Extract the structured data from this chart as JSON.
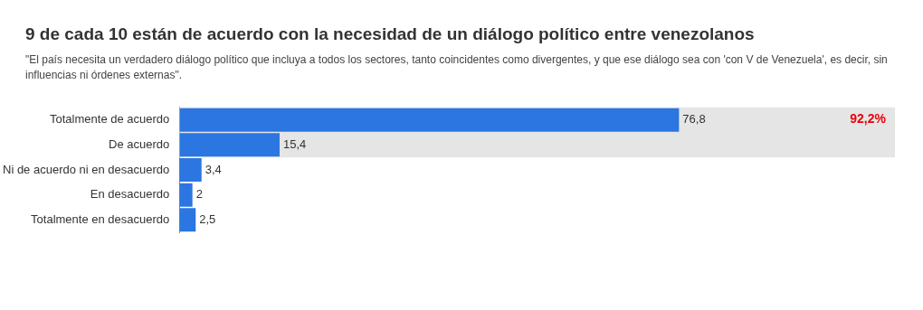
{
  "chart_data": {
    "type": "bar",
    "orientation": "horizontal",
    "title": "9 de cada 10 están de acuerdo con la necesidad de un diálogo político entre venezolanos",
    "subtitle": "\"El país necesita un verdadero diálogo político que incluya a todos los sectores, tanto coincidentes como divergentes, y que ese diálogo sea con 'con V de Venezuela', es decir, sin influencias ni órdenes externas\".",
    "categories": [
      "Totalmente de acuerdo",
      "De acuerdo",
      "Ni de acuerdo ni en desacuerdo",
      "En desacuerdo",
      "Totalmente en desacuerdo"
    ],
    "values": [
      76.8,
      15.4,
      3.4,
      2,
      2.5
    ],
    "value_labels": [
      "76,8",
      "15,4",
      "3,4",
      "2",
      "2,5"
    ],
    "color": "#2b76e0",
    "xlim": [
      0,
      110
    ],
    "tick_labels": "y",
    "legend": false,
    "bands": [
      {
        "axis": "y",
        "from": "Totalmente de acuerdo",
        "to": "De acuerdo",
        "label": "92,2%",
        "color": "#e5e5e5"
      }
    ]
  }
}
